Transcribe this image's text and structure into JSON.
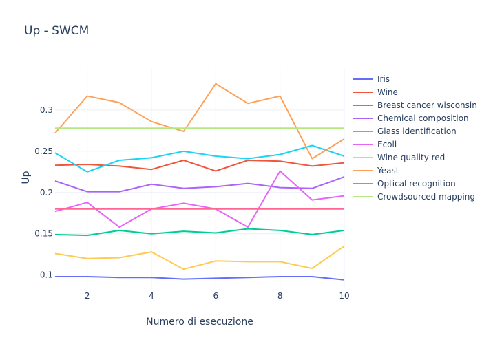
{
  "chart_data": {
    "type": "line",
    "title": "Up - SWCM",
    "xlabel": "Numero di esecuzione",
    "ylabel": "Up",
    "xlim": [
      1,
      10
    ],
    "ylim": [
      0.083,
      0.35
    ],
    "xticks": [
      2,
      4,
      6,
      8,
      10
    ],
    "yticks": [
      0.1,
      0.15,
      0.2,
      0.25,
      0.3
    ],
    "ytick_labels": [
      "0.1",
      "0.15",
      "0.2",
      "0.25",
      "0.3"
    ],
    "x": [
      1,
      2,
      3,
      4,
      5,
      6,
      7,
      8,
      9,
      10
    ],
    "legend_position": "right",
    "series": [
      {
        "name": "Iris",
        "color": "#636efa",
        "values": [
          0.098,
          0.098,
          0.097,
          0.097,
          0.095,
          0.096,
          0.097,
          0.098,
          0.098,
          0.094
        ]
      },
      {
        "name": "Wine",
        "color": "#EF553B",
        "values": [
          0.233,
          0.234,
          0.232,
          0.228,
          0.239,
          0.226,
          0.239,
          0.238,
          0.232,
          0.236
        ]
      },
      {
        "name": "Breast cancer wisconsin",
        "color": "#00cc96",
        "values": [
          0.149,
          0.148,
          0.154,
          0.15,
          0.153,
          0.151,
          0.156,
          0.154,
          0.149,
          0.154
        ]
      },
      {
        "name": "Chemical composition",
        "color": "#ab63fa",
        "values": [
          0.214,
          0.201,
          0.201,
          0.21,
          0.205,
          0.207,
          0.211,
          0.206,
          0.205,
          0.219
        ]
      },
      {
        "name": "Glass identification",
        "color": "#19d3f3",
        "values": [
          0.248,
          0.225,
          0.239,
          0.242,
          0.25,
          0.244,
          0.241,
          0.246,
          0.257,
          0.244
        ]
      },
      {
        "name": "Ecoli",
        "color": "#FF6692",
        "values": [
          0.177,
          0.188,
          0.158,
          0.18,
          0.187,
          0.18,
          0.158,
          0.226,
          0.191,
          0.196
        ],
        "color_override": "#e763fa"
      },
      {
        "name": "Wine quality red",
        "color": "#FECB52",
        "values": [
          0.126,
          0.12,
          0.121,
          0.128,
          0.107,
          0.117,
          0.116,
          0.116,
          0.108,
          0.135
        ]
      },
      {
        "name": "Yeast",
        "color": "#FFA15A",
        "values": [
          0.272,
          0.317,
          0.309,
          0.286,
          0.274,
          0.332,
          0.308,
          0.317,
          0.241,
          0.265
        ]
      },
      {
        "name": "Optical recognition",
        "color": "#FF6692",
        "values": [
          0.18,
          0.18,
          0.18,
          0.18,
          0.18,
          0.18,
          0.18,
          0.18,
          0.18,
          0.18
        ]
      },
      {
        "name": "Crowdsourced mapping",
        "color": "#B6E880",
        "values": [
          0.278,
          0.278,
          0.278,
          0.278,
          0.278,
          0.278,
          0.278,
          0.278,
          0.278,
          0.278
        ]
      }
    ]
  }
}
